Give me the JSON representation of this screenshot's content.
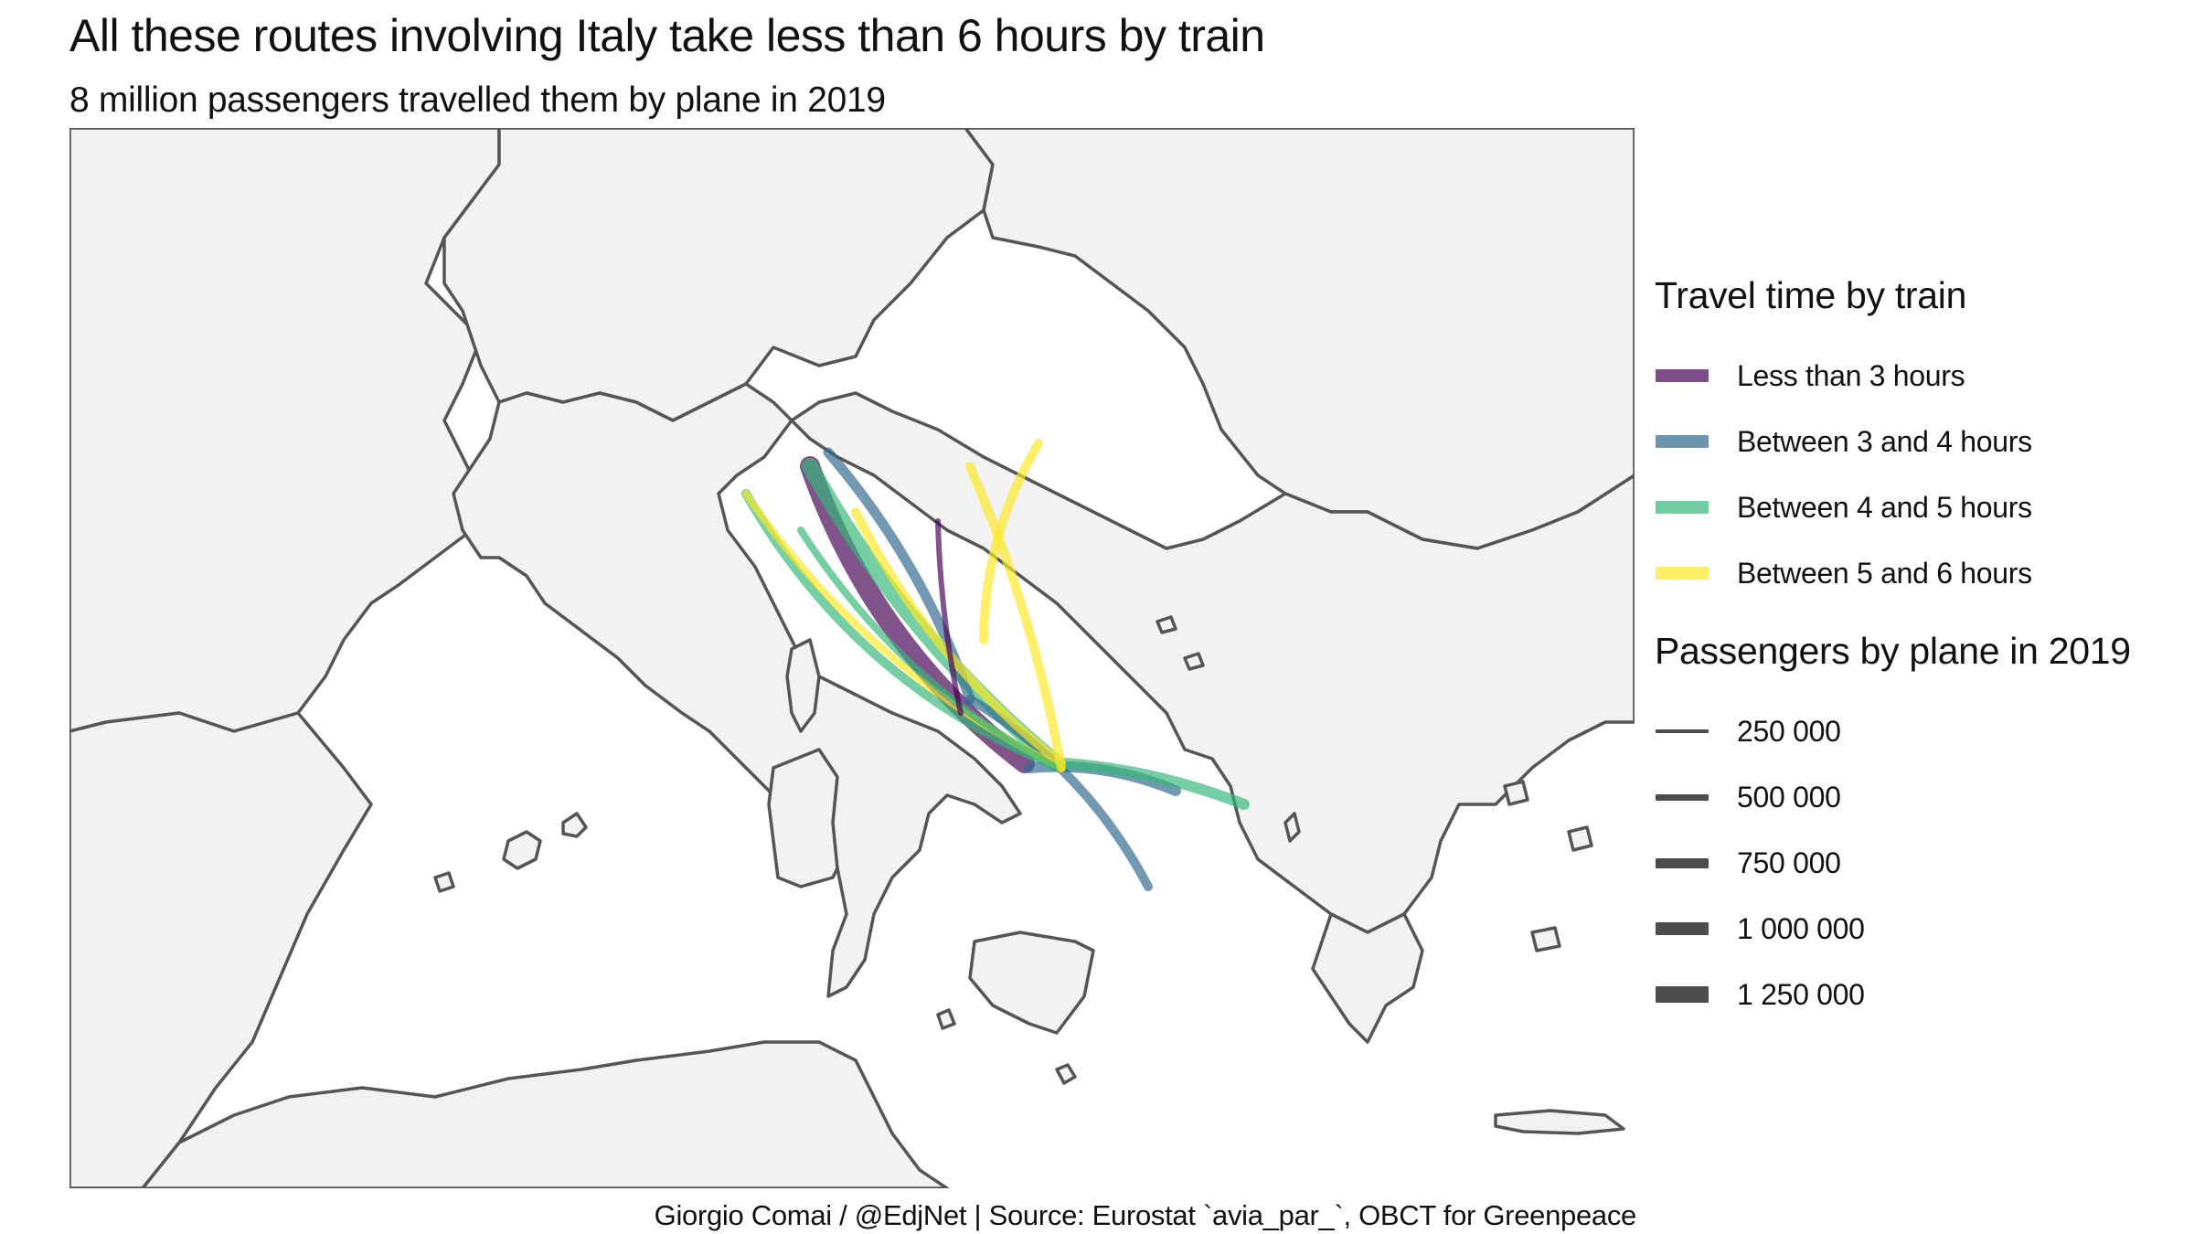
{
  "title": "All these routes involving Italy take less than 6 hours by train",
  "subtitle": "8 million passengers travelled them by plane in 2019",
  "caption": "Giorgio Comai / @EdjNet | Source: Eurostat `avia_par_`, OBCT for Greenpeace",
  "colors": {
    "land": "#f2f2f2",
    "border": "#555555",
    "sea": "#ffffff",
    "lt3": "#440154",
    "b34": "#31688e",
    "b45": "#35b779",
    "b56": "#fde725"
  },
  "legend": {
    "color_title": "Travel time by train",
    "color_items": [
      {
        "label": "Less than 3 hours",
        "color": "#440154"
      },
      {
        "label": "Between 3 and 4 hours",
        "color": "#31688e"
      },
      {
        "label": "Between 4 and 5 hours",
        "color": "#35b779"
      },
      {
        "label": "Between 5 and 6 hours",
        "color": "#fde725"
      }
    ],
    "size_title": "Passengers by plane in 2019",
    "size_items": [
      {
        "label": "250 000",
        "value": 250000
      },
      {
        "label": "500 000",
        "value": 500000
      },
      {
        "label": "750 000",
        "value": 750000
      },
      {
        "label": "1 000 000",
        "value": 1000000
      },
      {
        "label": "1 250 000",
        "value": 1250000
      }
    ]
  }
}
